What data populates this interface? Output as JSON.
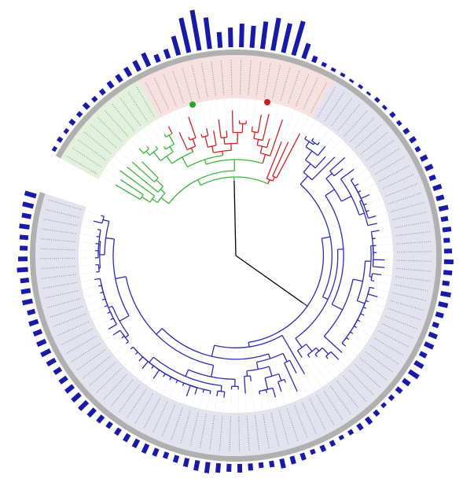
{
  "ring_bars": {
    "color": "#1a1aa8",
    "values": [
      5,
      6,
      5,
      7,
      6,
      8,
      6,
      7,
      9,
      10,
      12,
      14,
      18,
      10,
      12,
      25,
      45,
      52,
      40,
      20,
      25,
      30,
      28,
      35,
      42,
      38,
      45,
      20,
      8,
      5,
      4,
      4,
      3,
      4,
      3,
      5,
      4,
      6,
      5,
      7,
      8,
      6,
      9,
      10,
      8,
      11,
      10,
      12,
      9,
      11,
      8,
      10,
      12,
      11,
      9,
      13,
      12,
      10,
      8,
      11,
      12,
      9,
      12,
      14,
      10,
      8,
      6,
      5,
      7,
      9,
      8,
      6,
      5,
      7,
      8,
      6,
      9,
      10,
      12,
      8,
      7,
      9,
      11,
      10,
      12,
      14,
      13,
      11,
      9,
      8,
      10,
      12,
      11,
      10,
      9,
      8,
      10,
      12,
      14,
      13,
      12,
      11,
      10,
      12,
      13,
      12,
      11,
      12,
      10,
      13,
      12,
      11,
      14,
      12,
      10,
      11,
      13,
      12,
      14,
      15
    ]
  }
}
